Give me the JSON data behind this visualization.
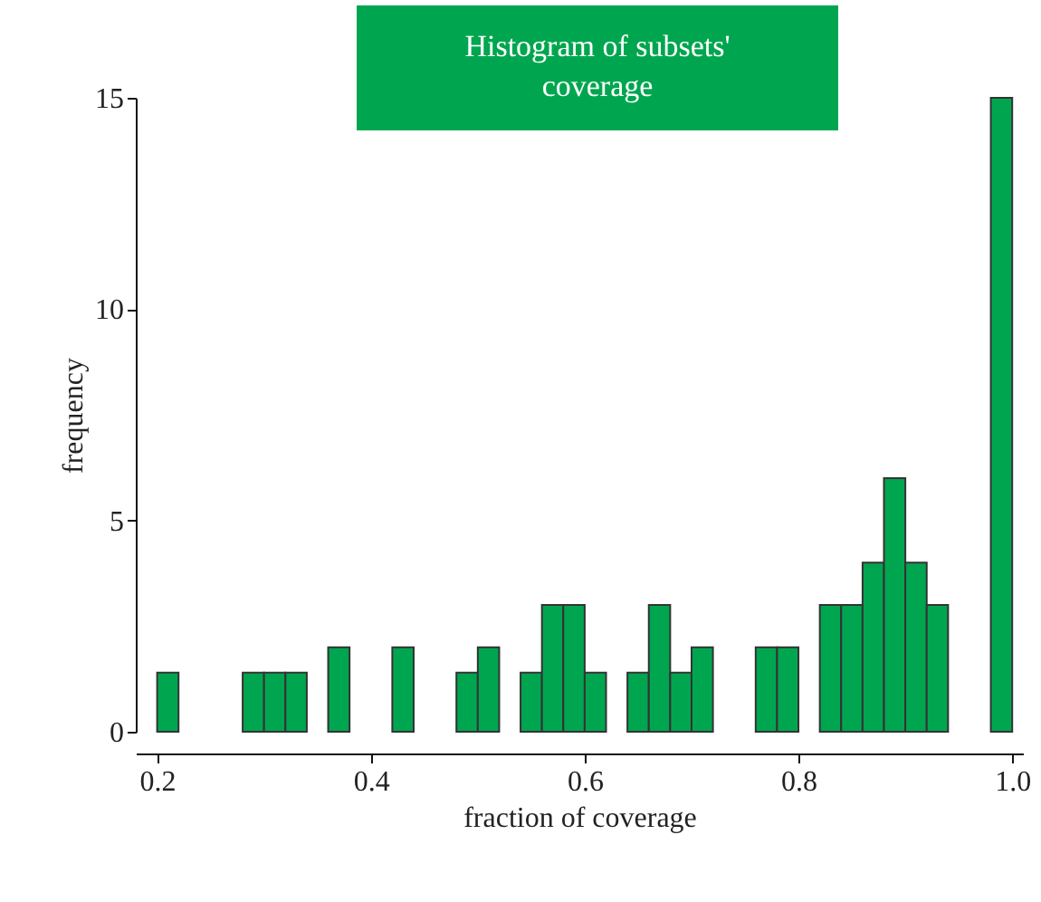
{
  "chart_data": {
    "type": "histogram",
    "title": "Histogram of subsets' coverage",
    "xlabel": "fraction of coverage",
    "ylabel": "frequency",
    "bins": [
      0.2,
      0.22,
      0.24,
      0.26,
      0.28,
      0.3,
      0.32,
      0.34,
      0.36,
      0.38,
      0.4,
      0.42,
      0.44,
      0.46,
      0.48,
      0.5,
      0.52,
      0.54,
      0.56,
      0.58,
      0.6,
      0.62,
      0.64,
      0.66,
      0.68,
      0.7,
      0.72,
      0.74,
      0.76,
      0.78,
      0.8,
      0.82,
      0.84,
      0.86,
      0.88,
      0.9,
      0.92,
      0.94,
      0.96,
      0.98,
      1.0
    ],
    "values": [
      1.4,
      0,
      0,
      0,
      1.4,
      1.4,
      1.4,
      0,
      2,
      0,
      0,
      2,
      0,
      0,
      1.4,
      2,
      0,
      1.4,
      3,
      3,
      1.4,
      0,
      1.4,
      3,
      1.4,
      2,
      0,
      0,
      2,
      2,
      0,
      3,
      3,
      4,
      6,
      4,
      3,
      0,
      0,
      15
    ],
    "color": "#00a64f",
    "xlim": [
      0.18,
      1.01
    ],
    "xticks": [
      0.2,
      0.4,
      0.6,
      0.8,
      {
        "value": 1.0,
        "label": "1.0"
      }
    ],
    "ylim": [
      0,
      15
    ],
    "yticks": [
      0,
      5,
      10,
      15
    ],
    "grid": false
  }
}
